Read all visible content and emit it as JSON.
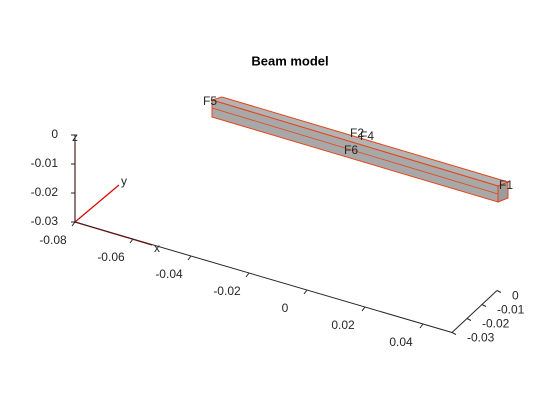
{
  "chart_data": {
    "type": "geometry3d",
    "title": "Beam model",
    "xlim": [
      -0.08,
      0.05
    ],
    "xticks": [
      -0.08,
      -0.06,
      -0.04,
      -0.02,
      0,
      0.02,
      0.04
    ],
    "ylim": [
      -0.03,
      0
    ],
    "yticks": [
      0,
      -0.01,
      -0.02,
      -0.03
    ],
    "zlim": [
      -0.03,
      0
    ],
    "zticks": [
      0,
      -0.01,
      -0.02,
      -0.03
    ],
    "face_labels": [
      "F5",
      "F2",
      "F4",
      "F6",
      "F1"
    ],
    "triad_labels": [
      "x",
      "y",
      "z"
    ]
  }
}
